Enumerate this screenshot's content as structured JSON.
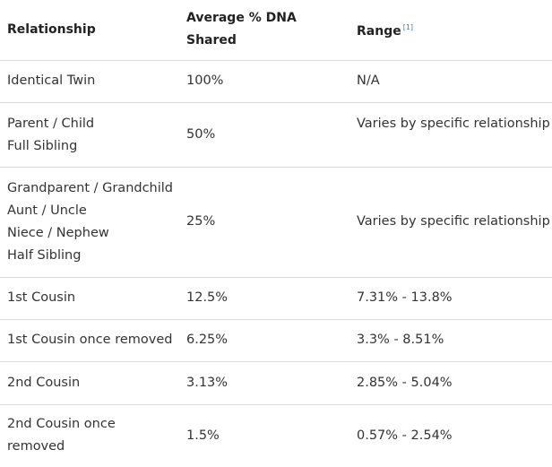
{
  "table": {
    "headers": {
      "relationship": "Relationship",
      "average_line1": "Average % DNA",
      "average_line2": "Shared",
      "range": "Range",
      "range_ref": "[1]"
    },
    "rows": [
      {
        "relationship": [
          "Identical Twin"
        ],
        "average": "100%",
        "range": "N/A"
      },
      {
        "relationship": [
          "Parent / Child",
          "Full Sibling"
        ],
        "average": "50%",
        "range": "Varies by specific relationship"
      },
      {
        "relationship": [
          "Grandparent / Grandchild",
          "Aunt / Uncle",
          "Niece / Nephew",
          "Half Sibling"
        ],
        "average": "25%",
        "range": "Varies by specific relationship"
      },
      {
        "relationship": [
          "1st Cousin"
        ],
        "average": "12.5%",
        "range": "7.31% - 13.8%"
      },
      {
        "relationship": [
          "1st Cousin once removed"
        ],
        "average": "6.25%",
        "range": "3.3% - 8.51%"
      },
      {
        "relationship": [
          "2nd Cousin"
        ],
        "average": "3.13%",
        "range": "2.85% - 5.04%"
      },
      {
        "relationship": [
          "2nd Cousin once",
          "removed"
        ],
        "average": "1.5%",
        "range": "0.57% - 2.54%"
      }
    ]
  }
}
